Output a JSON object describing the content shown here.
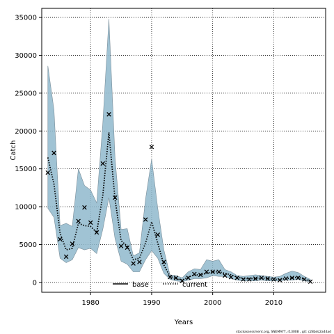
{
  "chart_data": {
    "type": "line",
    "title": "",
    "xlabel": "Years",
    "ylabel": "Catch",
    "xlim": [
      1972,
      2018.5
    ],
    "ylim": [
      -1300,
      36200
    ],
    "xticks": [
      1980,
      1990,
      2000,
      2010
    ],
    "yticks": [
      0,
      5000,
      10000,
      15000,
      20000,
      25000,
      30000,
      35000
    ],
    "grid": true,
    "legend": {
      "placement": "bottom-center",
      "entries": [
        {
          "label": "base",
          "style": "solid",
          "color": "#000000"
        },
        {
          "label": "current",
          "style": "dotted",
          "color": "#000000"
        }
      ]
    },
    "band_color": "#8fb8cc",
    "x": [
      1973,
      1974,
      1975,
      1976,
      1977,
      1978,
      1979,
      1980,
      1981,
      1982,
      1983,
      1984,
      1985,
      1986,
      1987,
      1988,
      1989,
      1990,
      1991,
      1992,
      1993,
      1994,
      1995,
      1996,
      1997,
      1998,
      1999,
      2000,
      2001,
      2002,
      2003,
      2004,
      2005,
      2006,
      2007,
      2008,
      2009,
      2010,
      2011,
      2012,
      2013,
      2014,
      2015,
      2016
    ],
    "series": [
      {
        "name": "current",
        "style": "dotted",
        "values": [
          16500,
          13000,
          6500,
          4300,
          4500,
          7800,
          7500,
          7400,
          6600,
          11500,
          19800,
          11000,
          5500,
          4800,
          3000,
          3200,
          5200,
          8000,
          5200,
          2300,
          800,
          500,
          300,
          700,
          1000,
          1000,
          1200,
          1400,
          1400,
          1200,
          1000,
          700,
          500,
          500,
          500,
          600,
          500,
          400,
          400,
          500,
          600,
          700,
          400,
          200
        ]
      }
    ],
    "band": {
      "upper": [
        28600,
        22800,
        7500,
        7800,
        7400,
        15000,
        12800,
        12200,
        10500,
        21000,
        34800,
        16500,
        7000,
        7100,
        3500,
        3900,
        11000,
        16300,
        9800,
        4300,
        1000,
        900,
        600,
        1400,
        1800,
        1700,
        3000,
        2800,
        3000,
        1700,
        1400,
        900,
        800,
        900,
        1000,
        900,
        800,
        700,
        800,
        1200,
        1500,
        1300,
        800,
        400
      ],
      "lower": [
        9800,
        8600,
        3200,
        2600,
        3000,
        4600,
        4300,
        4500,
        3800,
        7000,
        11200,
        5800,
        2800,
        2400,
        1400,
        1400,
        3000,
        4200,
        3200,
        1200,
        400,
        200,
        100,
        300,
        500,
        500,
        600,
        900,
        800,
        800,
        500,
        300,
        200,
        200,
        200,
        300,
        200,
        200,
        200,
        300,
        300,
        400,
        200,
        100
      ]
    },
    "observed": {
      "marker": "x",
      "x": [
        1973,
        1974,
        1975,
        1976,
        1977,
        1978,
        1979,
        1980,
        1981,
        1982,
        1983,
        1984,
        1985,
        1986,
        1987,
        1988,
        1989,
        1990,
        1991,
        1992,
        1993,
        1994,
        1995,
        1996,
        1997,
        1998,
        1999,
        2000,
        2001,
        2002,
        2003,
        2004,
        2005,
        2006,
        2007,
        2008,
        2009,
        2010,
        2011,
        2012,
        2013,
        2014,
        2015,
        2016
      ],
      "y": [
        14500,
        17100,
        5700,
        3400,
        5100,
        8100,
        9900,
        7900,
        6600,
        15700,
        22200,
        11200,
        4800,
        4600,
        2500,
        2700,
        8300,
        17900,
        6300,
        2700,
        700,
        600,
        200,
        600,
        1100,
        1000,
        1400,
        1400,
        1400,
        900,
        700,
        600,
        400,
        400,
        500,
        600,
        500,
        400,
        300,
        500,
        600,
        600,
        400,
        100
      ]
    }
  },
  "footnote": "stockassessment.org, SNEMAYT, r13008 , git: c28bdc2a44ad"
}
